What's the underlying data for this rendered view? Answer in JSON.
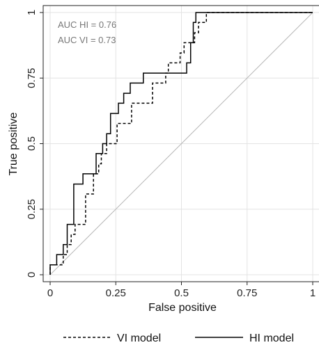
{
  "chart_data": {
    "type": "line",
    "xlabel": "False positive",
    "ylabel": "True positive",
    "xlim": [
      0,
      1
    ],
    "ylim": [
      0,
      1
    ],
    "x_ticks": [
      0,
      0.25,
      0.5,
      0.75,
      1
    ],
    "x_tick_labels": [
      "0",
      "0.25",
      "0.5",
      "0.75",
      "1"
    ],
    "y_ticks": [
      0,
      0.25,
      0.5,
      0.75,
      1
    ],
    "y_tick_labels": [
      "0",
      "0.25",
      "0.5",
      "0.75",
      "1"
    ],
    "grid": true,
    "legend_position": "bottom",
    "annotations": [
      "AUC HI = 0.76",
      "AUC VI = 0.73"
    ],
    "series": [
      {
        "name": "VI model",
        "line_style": "dashed",
        "color": "#000000",
        "points": [
          [
            0,
            0
          ],
          [
            0,
            0.038
          ],
          [
            0.05,
            0.038
          ],
          [
            0.05,
            0.077
          ],
          [
            0.065,
            0.077
          ],
          [
            0.065,
            0.115
          ],
          [
            0.08,
            0.115
          ],
          [
            0.08,
            0.154
          ],
          [
            0.095,
            0.154
          ],
          [
            0.095,
            0.192
          ],
          [
            0.135,
            0.192
          ],
          [
            0.135,
            0.308
          ],
          [
            0.165,
            0.308
          ],
          [
            0.165,
            0.385
          ],
          [
            0.185,
            0.385
          ],
          [
            0.185,
            0.423
          ],
          [
            0.195,
            0.423
          ],
          [
            0.195,
            0.462
          ],
          [
            0.215,
            0.462
          ],
          [
            0.215,
            0.5
          ],
          [
            0.255,
            0.5
          ],
          [
            0.255,
            0.577
          ],
          [
            0.31,
            0.577
          ],
          [
            0.31,
            0.654
          ],
          [
            0.39,
            0.654
          ],
          [
            0.39,
            0.731
          ],
          [
            0.44,
            0.731
          ],
          [
            0.44,
            0.769
          ],
          [
            0.45,
            0.769
          ],
          [
            0.45,
            0.808
          ],
          [
            0.495,
            0.808
          ],
          [
            0.495,
            0.846
          ],
          [
            0.51,
            0.846
          ],
          [
            0.51,
            0.885
          ],
          [
            0.55,
            0.885
          ],
          [
            0.55,
            0.923
          ],
          [
            0.565,
            0.923
          ],
          [
            0.565,
            0.962
          ],
          [
            0.595,
            0.962
          ],
          [
            0.595,
            1
          ],
          [
            1,
            1
          ]
        ]
      },
      {
        "name": "HI model",
        "line_style": "solid",
        "color": "#000000",
        "points": [
          [
            0,
            0
          ],
          [
            0,
            0.038
          ],
          [
            0.025,
            0.038
          ],
          [
            0.025,
            0.077
          ],
          [
            0.05,
            0.077
          ],
          [
            0.05,
            0.115
          ],
          [
            0.065,
            0.115
          ],
          [
            0.065,
            0.192
          ],
          [
            0.09,
            0.192
          ],
          [
            0.09,
            0.346
          ],
          [
            0.125,
            0.346
          ],
          [
            0.125,
            0.385
          ],
          [
            0.175,
            0.385
          ],
          [
            0.175,
            0.462
          ],
          [
            0.2,
            0.462
          ],
          [
            0.2,
            0.5
          ],
          [
            0.215,
            0.5
          ],
          [
            0.215,
            0.538
          ],
          [
            0.23,
            0.538
          ],
          [
            0.23,
            0.615
          ],
          [
            0.26,
            0.615
          ],
          [
            0.26,
            0.654
          ],
          [
            0.28,
            0.654
          ],
          [
            0.28,
            0.692
          ],
          [
            0.305,
            0.692
          ],
          [
            0.305,
            0.731
          ],
          [
            0.355,
            0.731
          ],
          [
            0.355,
            0.769
          ],
          [
            0.52,
            0.769
          ],
          [
            0.52,
            0.808
          ],
          [
            0.535,
            0.808
          ],
          [
            0.535,
            0.885
          ],
          [
            0.545,
            0.885
          ],
          [
            0.545,
            0.962
          ],
          [
            0.555,
            0.962
          ],
          [
            0.555,
            1
          ],
          [
            1,
            1
          ]
        ]
      },
      {
        "name": "",
        "role": "chance-diagonal",
        "line_style": "solid",
        "color": "#b8b8b8",
        "points": [
          [
            0,
            0
          ],
          [
            1,
            1
          ]
        ]
      }
    ]
  }
}
